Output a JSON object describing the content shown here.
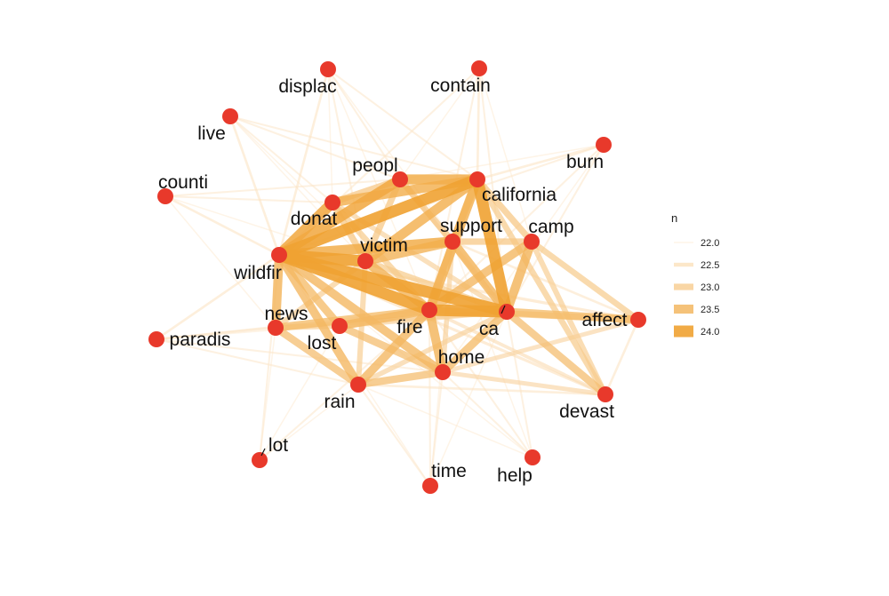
{
  "chart_data": {
    "type": "network",
    "legend": {
      "title": "n",
      "entries": [
        {
          "label": "22.0",
          "value": 22.0
        },
        {
          "label": "22.5",
          "value": 22.5
        },
        {
          "label": "23.0",
          "value": 23.0
        },
        {
          "label": "23.5",
          "value": 23.5
        },
        {
          "label": "24.0",
          "value": 24.0
        }
      ],
      "placement": "right"
    },
    "colors": {
      "node": "#e8392b",
      "edge_low": "#fdebd3",
      "edge_high": "#f0a232"
    },
    "nodes": [
      {
        "id": "displac",
        "label": "displac"
      },
      {
        "id": "contain",
        "label": "contain"
      },
      {
        "id": "live",
        "label": "live"
      },
      {
        "id": "burn",
        "label": "burn"
      },
      {
        "id": "peopl",
        "label": "peopl"
      },
      {
        "id": "counti",
        "label": "counti"
      },
      {
        "id": "california",
        "label": "california"
      },
      {
        "id": "donat",
        "label": "donat"
      },
      {
        "id": "support",
        "label": "support"
      },
      {
        "id": "camp",
        "label": "camp"
      },
      {
        "id": "victim",
        "label": "victim"
      },
      {
        "id": "wildfir",
        "label": "wildfir"
      },
      {
        "id": "news",
        "label": "news"
      },
      {
        "id": "fire",
        "label": "fire"
      },
      {
        "id": "ca",
        "label": "ca"
      },
      {
        "id": "affect",
        "label": "affect"
      },
      {
        "id": "paradis",
        "label": "paradis"
      },
      {
        "id": "lost",
        "label": "lost"
      },
      {
        "id": "home",
        "label": "home"
      },
      {
        "id": "rain",
        "label": "rain"
      },
      {
        "id": "devast",
        "label": "devast"
      },
      {
        "id": "lot",
        "label": "lot"
      },
      {
        "id": "time",
        "label": "time"
      },
      {
        "id": "help",
        "label": "help"
      }
    ],
    "edges": [
      {
        "source": "wildfir",
        "target": "california",
        "n": 24.0
      },
      {
        "source": "wildfir",
        "target": "fire",
        "n": 24.0
      },
      {
        "source": "wildfir",
        "target": "ca",
        "n": 24.0
      },
      {
        "source": "fire",
        "target": "ca",
        "n": 24.0
      },
      {
        "source": "california",
        "target": "ca",
        "n": 24.0
      },
      {
        "source": "wildfir",
        "target": "victim",
        "n": 24.0
      },
      {
        "source": "wildfir",
        "target": "donat",
        "n": 23.8
      },
      {
        "source": "wildfir",
        "target": "peopl",
        "n": 23.8
      },
      {
        "source": "wildfir",
        "target": "support",
        "n": 23.7
      },
      {
        "source": "california",
        "target": "peopl",
        "n": 23.7
      },
      {
        "source": "california",
        "target": "donat",
        "n": 23.6
      },
      {
        "source": "california",
        "target": "victim",
        "n": 23.6
      },
      {
        "source": "california",
        "target": "fire",
        "n": 23.6
      },
      {
        "source": "victim",
        "target": "support",
        "n": 23.5
      },
      {
        "source": "victim",
        "target": "fire",
        "n": 23.5
      },
      {
        "source": "support",
        "target": "ca",
        "n": 23.5
      },
      {
        "source": "camp",
        "target": "ca",
        "n": 23.5
      },
      {
        "source": "camp",
        "target": "fire",
        "n": 23.4
      },
      {
        "source": "wildfir",
        "target": "news",
        "n": 23.5
      },
      {
        "source": "wildfir",
        "target": "rain",
        "n": 23.4
      },
      {
        "source": "wildfir",
        "target": "lost",
        "n": 23.3
      },
      {
        "source": "wildfir",
        "target": "home",
        "n": 23.4
      },
      {
        "source": "fire",
        "target": "home",
        "n": 23.5
      },
      {
        "source": "fire",
        "target": "rain",
        "n": 23.4
      },
      {
        "source": "fire",
        "target": "news",
        "n": 23.3
      },
      {
        "source": "fire",
        "target": "lost",
        "n": 23.4
      },
      {
        "source": "news",
        "target": "rain",
        "n": 23.2
      },
      {
        "source": "rain",
        "target": "home",
        "n": 23.2
      },
      {
        "source": "lost",
        "target": "home",
        "n": 23.2
      },
      {
        "source": "ca",
        "target": "home",
        "n": 23.3
      },
      {
        "source": "ca",
        "target": "affect",
        "n": 23.3
      },
      {
        "source": "ca",
        "target": "devast",
        "n": 23.2
      },
      {
        "source": "fire",
        "target": "affect",
        "n": 23.0
      },
      {
        "source": "california",
        "target": "devast",
        "n": 22.9
      },
      {
        "source": "camp",
        "target": "affect",
        "n": 22.9
      },
      {
        "source": "camp",
        "target": "devast",
        "n": 22.8
      },
      {
        "source": "peopl",
        "target": "donat",
        "n": 23.0
      },
      {
        "source": "peopl",
        "target": "victim",
        "n": 23.0
      },
      {
        "source": "peopl",
        "target": "support",
        "n": 23.0
      },
      {
        "source": "donat",
        "target": "victim",
        "n": 23.0
      },
      {
        "source": "support",
        "target": "camp",
        "n": 23.0
      },
      {
        "source": "california",
        "target": "support",
        "n": 23.1
      },
      {
        "source": "california",
        "target": "camp",
        "n": 23.0
      },
      {
        "source": "donat",
        "target": "fire",
        "n": 22.9
      },
      {
        "source": "support",
        "target": "fire",
        "n": 23.0
      },
      {
        "source": "victim",
        "target": "news",
        "n": 22.8
      },
      {
        "source": "victim",
        "target": "rain",
        "n": 22.8
      },
      {
        "source": "victim",
        "target": "ca",
        "n": 22.9
      },
      {
        "source": "news",
        "target": "lost",
        "n": 22.8
      },
      {
        "source": "home",
        "target": "devast",
        "n": 22.6
      },
      {
        "source": "home",
        "target": "affect",
        "n": 22.6
      },
      {
        "source": "rain",
        "target": "ca",
        "n": 22.7
      },
      {
        "source": "news",
        "target": "ca",
        "n": 22.7
      },
      {
        "source": "lost",
        "target": "ca",
        "n": 22.7
      },
      {
        "source": "support",
        "target": "home",
        "n": 22.7
      },
      {
        "source": "donat",
        "target": "ca",
        "n": 22.7
      },
      {
        "source": "peopl",
        "target": "ca",
        "n": 22.6
      },
      {
        "source": "paradis",
        "target": "wildfir",
        "n": 22.2
      },
      {
        "source": "paradis",
        "target": "fire",
        "n": 22.1
      },
      {
        "source": "paradis",
        "target": "news",
        "n": 22.2
      },
      {
        "source": "paradis",
        "target": "rain",
        "n": 22.1
      },
      {
        "source": "paradis",
        "target": "home",
        "n": 22.1
      },
      {
        "source": "paradis",
        "target": "ca",
        "n": 22.0
      },
      {
        "source": "counti",
        "target": "wildfir",
        "n": 22.2
      },
      {
        "source": "counti",
        "target": "donat",
        "n": 22.1
      },
      {
        "source": "counti",
        "target": "peopl",
        "n": 22.1
      },
      {
        "source": "counti",
        "target": "victim",
        "n": 22.0
      },
      {
        "source": "counti",
        "target": "news",
        "n": 22.0
      },
      {
        "source": "live",
        "target": "wildfir",
        "n": 22.2
      },
      {
        "source": "live",
        "target": "peopl",
        "n": 22.1
      },
      {
        "source": "live",
        "target": "california",
        "n": 22.1
      },
      {
        "source": "live",
        "target": "donat",
        "n": 22.1
      },
      {
        "source": "live",
        "target": "victim",
        "n": 22.0
      },
      {
        "source": "live",
        "target": "fire",
        "n": 22.0
      },
      {
        "source": "displac",
        "target": "wildfir",
        "n": 22.2
      },
      {
        "source": "displac",
        "target": "california",
        "n": 22.1
      },
      {
        "source": "displac",
        "target": "peopl",
        "n": 22.1
      },
      {
        "source": "displac",
        "target": "victim",
        "n": 22.1
      },
      {
        "source": "displac",
        "target": "fire",
        "n": 22.0
      },
      {
        "source": "displac",
        "target": "ca",
        "n": 22.0
      },
      {
        "source": "displac",
        "target": "donat",
        "n": 22.0
      },
      {
        "source": "contain",
        "target": "california",
        "n": 22.2
      },
      {
        "source": "contain",
        "target": "fire",
        "n": 22.1
      },
      {
        "source": "contain",
        "target": "ca",
        "n": 22.1
      },
      {
        "source": "contain",
        "target": "wildfir",
        "n": 22.1
      },
      {
        "source": "contain",
        "target": "camp",
        "n": 22.0
      },
      {
        "source": "contain",
        "target": "peopl",
        "n": 22.0
      },
      {
        "source": "burn",
        "target": "california",
        "n": 22.2
      },
      {
        "source": "burn",
        "target": "fire",
        "n": 22.1
      },
      {
        "source": "burn",
        "target": "ca",
        "n": 22.1
      },
      {
        "source": "burn",
        "target": "wildfir",
        "n": 22.1
      },
      {
        "source": "burn",
        "target": "peopl",
        "n": 22.0
      },
      {
        "source": "burn",
        "target": "home",
        "n": 22.0
      },
      {
        "source": "lot",
        "target": "wildfir",
        "n": 22.1
      },
      {
        "source": "lot",
        "target": "fire",
        "n": 22.1
      },
      {
        "source": "lot",
        "target": "news",
        "n": 22.0
      },
      {
        "source": "lot",
        "target": "rain",
        "n": 22.0
      },
      {
        "source": "lot",
        "target": "lost",
        "n": 22.0
      },
      {
        "source": "time",
        "target": "fire",
        "n": 22.1
      },
      {
        "source": "time",
        "target": "rain",
        "n": 22.1
      },
      {
        "source": "time",
        "target": "home",
        "n": 22.1
      },
      {
        "source": "time",
        "target": "ca",
        "n": 22.0
      },
      {
        "source": "time",
        "target": "wildfir",
        "n": 22.0
      },
      {
        "source": "time",
        "target": "support",
        "n": 22.0
      },
      {
        "source": "help",
        "target": "fire",
        "n": 22.1
      },
      {
        "source": "help",
        "target": "home",
        "n": 22.1
      },
      {
        "source": "help",
        "target": "ca",
        "n": 22.1
      },
      {
        "source": "help",
        "target": "rain",
        "n": 22.0
      },
      {
        "source": "help",
        "target": "wildfir",
        "n": 22.0
      },
      {
        "source": "help",
        "target": "support",
        "n": 22.0
      },
      {
        "source": "devast",
        "target": "fire",
        "n": 22.4
      },
      {
        "source": "devast",
        "target": "wildfir",
        "n": 22.3
      },
      {
        "source": "devast",
        "target": "rain",
        "n": 22.2
      },
      {
        "source": "affect",
        "target": "wildfir",
        "n": 22.3
      },
      {
        "source": "affect",
        "target": "devast",
        "n": 22.2
      },
      {
        "source": "affect",
        "target": "support",
        "n": 22.2
      }
    ]
  }
}
